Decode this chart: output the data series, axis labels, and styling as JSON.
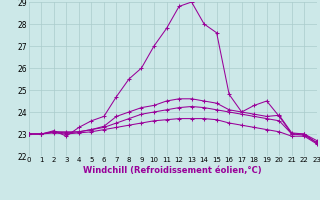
{
  "xlabel": "Windchill (Refroidissement éolien,°C)",
  "xlim": [
    0,
    23
  ],
  "ylim": [
    22,
    29
  ],
  "bg_color": "#cce8e8",
  "line_color": "#990099",
  "grid_color": "#aacccc",
  "lines": [
    [
      23.0,
      23.0,
      23.15,
      22.9,
      23.3,
      23.6,
      23.8,
      24.7,
      25.5,
      26.0,
      27.0,
      27.8,
      28.8,
      29.0,
      28.0,
      27.6,
      24.8,
      24.0,
      24.3,
      24.5,
      23.8,
      23.0,
      23.0,
      22.6
    ],
    [
      23.0,
      23.0,
      23.1,
      23.05,
      23.1,
      23.2,
      23.35,
      23.8,
      24.0,
      24.2,
      24.3,
      24.5,
      24.6,
      24.6,
      24.5,
      24.4,
      24.1,
      24.0,
      23.9,
      23.8,
      23.85,
      23.05,
      23.0,
      22.7
    ],
    [
      23.0,
      23.0,
      23.1,
      23.1,
      23.1,
      23.2,
      23.3,
      23.5,
      23.7,
      23.9,
      24.0,
      24.1,
      24.2,
      24.25,
      24.2,
      24.1,
      24.0,
      23.9,
      23.8,
      23.7,
      23.6,
      23.0,
      22.95,
      22.6
    ],
    [
      23.0,
      23.0,
      23.05,
      23.0,
      23.05,
      23.1,
      23.2,
      23.3,
      23.4,
      23.5,
      23.6,
      23.65,
      23.7,
      23.7,
      23.7,
      23.65,
      23.5,
      23.4,
      23.3,
      23.2,
      23.1,
      22.9,
      22.9,
      22.55
    ]
  ],
  "xtick_fontsize": 5.0,
  "ytick_fontsize": 5.5,
  "xlabel_fontsize": 6.0,
  "marker_size": 2.5,
  "linewidth": 0.75
}
